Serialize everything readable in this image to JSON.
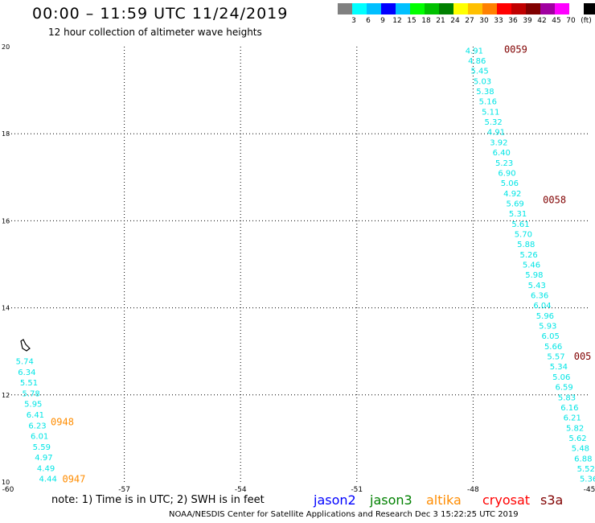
{
  "header": {
    "title": "00:00 – 11:59 UTC 11/24/2019",
    "subtitle": "12 hour collection of altimeter wave heights"
  },
  "legend": {
    "colors": [
      "#808080",
      "#00ffff",
      "#00bfff",
      "#0000ff",
      "#00c0ff",
      "#00ff00",
      "#00c000",
      "#008000",
      "#ffff00",
      "#ffc000",
      "#ff8000",
      "#ff0000",
      "#c00000",
      "#800000",
      "#a000a0",
      "#ff00ff",
      "#ffffff",
      "#000000"
    ],
    "labels": [
      "3",
      "6",
      "9",
      "12",
      "15",
      "18",
      "21",
      "24",
      "27",
      "30",
      "33",
      "36",
      "39",
      "42",
      "45",
      "70"
    ],
    "units": "(ft)"
  },
  "map": {
    "lon_range": [
      -60,
      -45
    ],
    "lat_range": [
      10,
      20
    ],
    "x_ticks": [
      "-60",
      "-57",
      "-54",
      "-51",
      "-48",
      "-45"
    ],
    "x_tick_values": [
      -60,
      -57,
      -54,
      -51,
      -48,
      -45
    ],
    "y_ticks": [
      "10",
      "12",
      "14",
      "16",
      "18",
      "20"
    ],
    "y_tick_values": [
      10,
      12,
      14,
      16,
      18,
      20
    ],
    "grid_lines": "dotted",
    "track_east": {
      "color": "#00e5e5",
      "values": [
        "4.91",
        "4.86",
        "5.45",
        "5.03",
        "5.38",
        "5.16",
        "5.11",
        "5.32",
        "4.91",
        "3.92",
        "6.40",
        "5.23",
        "6.90",
        "5.06",
        "4.92",
        "5.69",
        "5.31",
        "5.61",
        "5.70",
        "5.88",
        "5.26",
        "5.46",
        "5.98",
        "5.43",
        "6.36",
        "6.04",
        "5.96",
        "5.93",
        "6.05",
        "5.66",
        "5.57",
        "5.34",
        "5.06",
        "6.59",
        "5.83",
        "6.16",
        "6.21",
        "5.82",
        "5.62",
        "5.48",
        "6.88",
        "5.52",
        "5.36"
      ],
      "lon_start": -48.2,
      "lat_start": 19.92,
      "lon_end": -45.25,
      "lat_end": 10.08
    },
    "track_west": {
      "color": "#00e5e5",
      "values": [
        "5.74",
        "6.34",
        "5.51",
        "5.78",
        "5.95",
        "6.41",
        "6.23",
        "6.01",
        "5.59",
        "4.97",
        "4.49",
        "4.44"
      ],
      "lon_start": -59.8,
      "lat_start": 12.78,
      "lon_end": -59.2,
      "lat_end": 10.08
    },
    "time_labels": [
      {
        "text": "0059",
        "color": "#800000",
        "lon": -47.2,
        "lat": 19.95
      },
      {
        "text": "0058",
        "color": "#800000",
        "lon": -46.2,
        "lat": 16.5
      },
      {
        "text": "005",
        "color": "#800000",
        "lon": -45.4,
        "lat": 12.9
      },
      {
        "text": "0948",
        "color": "#ff8c00",
        "lon": -58.9,
        "lat": 11.4
      },
      {
        "text": "0947",
        "color": "#ff8c00",
        "lon": -58.6,
        "lat": 10.08
      }
    ]
  },
  "satellites": [
    {
      "name": "jason2",
      "color": "#0000ff"
    },
    {
      "name": "jason3",
      "color": "#008000"
    },
    {
      "name": "altika",
      "color": "#ff8c00"
    },
    {
      "name": "cryosat",
      "color": "#ff0000"
    },
    {
      "name": "s3a",
      "color": "#800000"
    }
  ],
  "note": "note:  1) Time is in UTC; 2) SWH is in feet",
  "footer": "NOAA/NESDIS Center for Satellite Applications and Research      Dec  3 15:22:25 UTC 2019"
}
